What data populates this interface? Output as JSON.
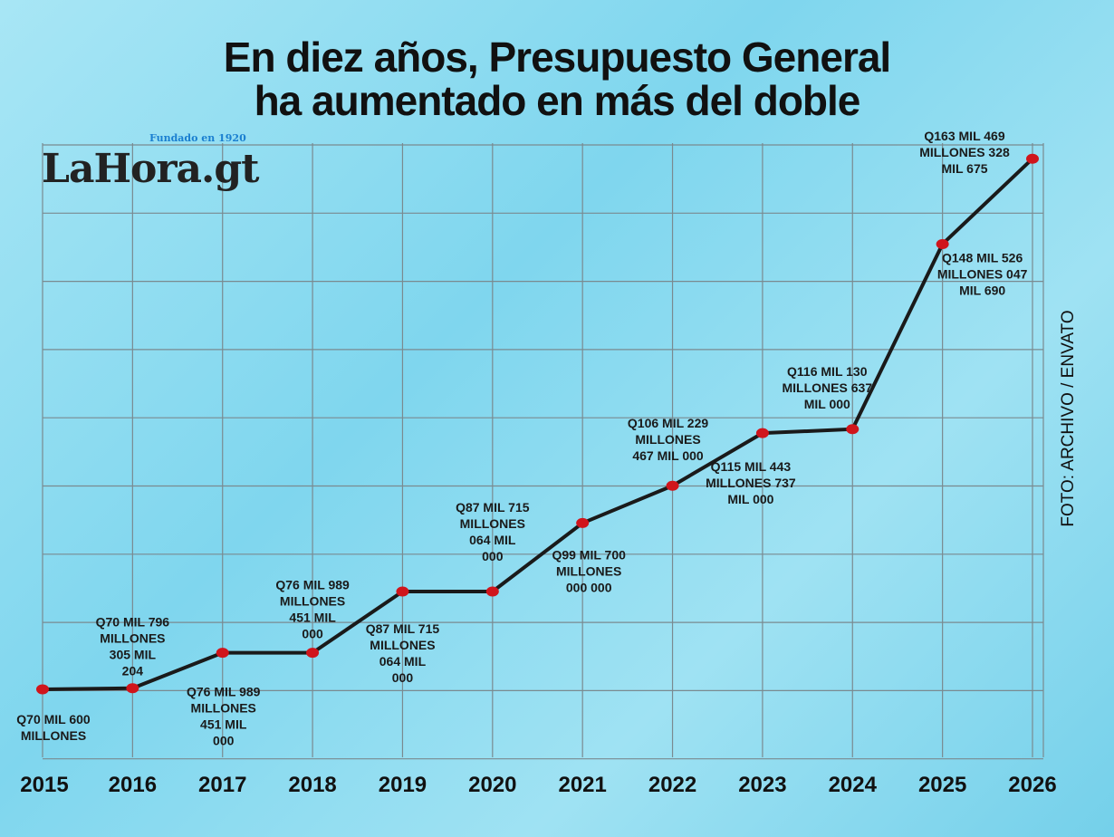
{
  "title_lines": [
    "En diez años, Presupuesto General",
    "ha aumentado en más del doble"
  ],
  "logo": {
    "text": "LaHora.gt",
    "tagline": "Fundado en 1920"
  },
  "credit": "FOTO: ARCHIVO / ENVATO",
  "colors": {
    "line": "#1a1a1a",
    "marker": "#d0151c",
    "grid": "#7a8a90",
    "background": "#8fdcf0"
  },
  "chart_data": {
    "type": "line",
    "title": "En diez años, Presupuesto General ha aumentado en más del doble",
    "xlabel": "",
    "ylabel": "",
    "x": [
      "2015",
      "2016",
      "2017",
      "2018",
      "2019",
      "2020",
      "2021",
      "2022",
      "2023",
      "2024",
      "2025",
      "2026"
    ],
    "values_billions_quetzales": [
      70.6,
      70.796,
      76.989,
      76.989,
      87.715,
      87.715,
      99.7,
      106.229,
      115.443,
      116.13,
      148.526,
      163.469
    ],
    "ylim": [
      58.7,
      166.2
    ],
    "grid": true,
    "y_tick_labels_shown": false,
    "data_labels": [
      [
        "Q70 MIL 600",
        "MILLONES"
      ],
      [
        "Q70 MIL 796",
        "MILLONES",
        "305 MIL",
        "204"
      ],
      [
        "Q76 MIL 989",
        "MILLONES",
        "451 MIL",
        "000"
      ],
      [
        "Q76 MIL 989",
        "MILLONES",
        "451 MIL",
        "000"
      ],
      [
        "Q87 MIL 715",
        "MILLONES",
        "064 MIL",
        "000"
      ],
      [
        "Q87 MIL 715",
        "MILLONES",
        "064 MIL",
        "000"
      ],
      [
        "Q99 MIL 700",
        "MILLONES",
        "000 000"
      ],
      [
        "Q106 MIL 229",
        "MILLONES",
        "467 MIL 000"
      ],
      [
        "Q115 MIL 443",
        "MILLONES 737",
        "MIL 000"
      ],
      [
        "Q116 MIL 130",
        "MILLONES 637",
        "MIL 000"
      ],
      [
        "Q148 MIL 526",
        "MILLONES 047",
        "MIL 690"
      ],
      [
        "Q163 MIL 469",
        "MILLONES 328",
        "MIL 675"
      ]
    ]
  }
}
